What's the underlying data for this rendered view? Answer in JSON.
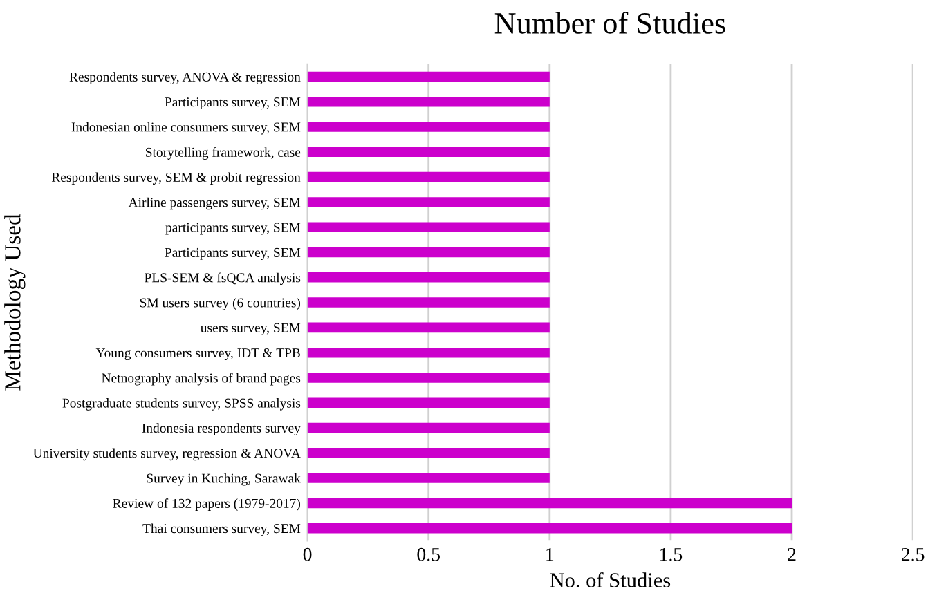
{
  "chart_data": {
    "type": "bar",
    "orientation": "horizontal",
    "title": "Number of Studies",
    "xlabel": "No. of Studies",
    "ylabel": "Methodology Used",
    "categories": [
      "Respondents survey, ANOVA & regression",
      "Participants survey, SEM",
      "Indonesian online consumers survey, SEM",
      "Storytelling framework, case",
      "Respondents survey, SEM & probit regression",
      "Airline passengers survey, SEM",
      "participants survey, SEM",
      "Participants survey, SEM",
      "PLS-SEM & fsQCA analysis",
      "SM users survey (6 countries)",
      "users survey, SEM",
      "Young consumers survey, IDT & TPB",
      "Netnography analysis of brand pages",
      "Postgraduate students survey, SPSS analysis",
      "Indonesia respondents survey",
      "University students survey, regression & ANOVA",
      "Survey in Kuching, Sarawak",
      "Review of 132 papers (1979-2017)",
      "Thai consumers survey, SEM"
    ],
    "values": [
      1,
      1,
      1,
      1,
      1,
      1,
      1,
      1,
      1,
      1,
      1,
      1,
      1,
      1,
      1,
      1,
      1,
      2,
      2
    ],
    "color": "#cc00cc",
    "xlim": [
      0,
      2.5
    ],
    "xticks": [
      0,
      0.5,
      1,
      1.5,
      2,
      2.5
    ],
    "grid": "x",
    "legend": false
  }
}
